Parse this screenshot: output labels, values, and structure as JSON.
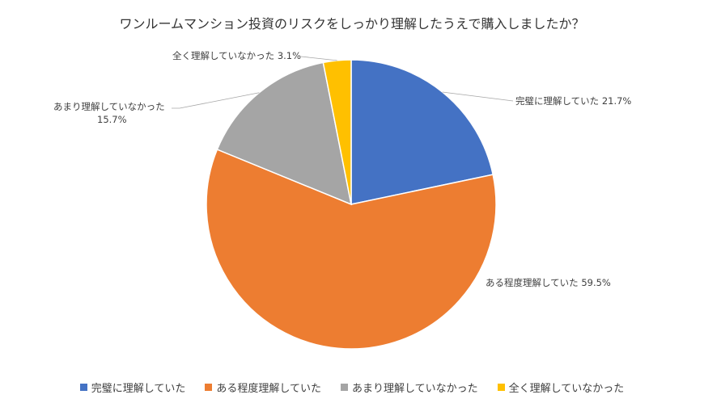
{
  "chart_data": {
    "type": "pie",
    "title": "ワンルームマンション投資のリスクをしっかり理解したうえで購入しましたか？",
    "categories": [
      "完璧に理解していた",
      "ある程度理解していた",
      "あまり理解していなかった",
      "全く理解していなかった"
    ],
    "values": [
      21.7,
      59.5,
      15.7,
      3.1
    ],
    "value_labels": [
      "21.7%",
      "59.5%",
      "15.7%",
      "3.1%"
    ],
    "colors": [
      "#4472C4",
      "#ED7D31",
      "#A5A5A5",
      "#FFC000"
    ],
    "legend": "bottom",
    "start_angle_deg": 0,
    "direction": "clockwise"
  }
}
